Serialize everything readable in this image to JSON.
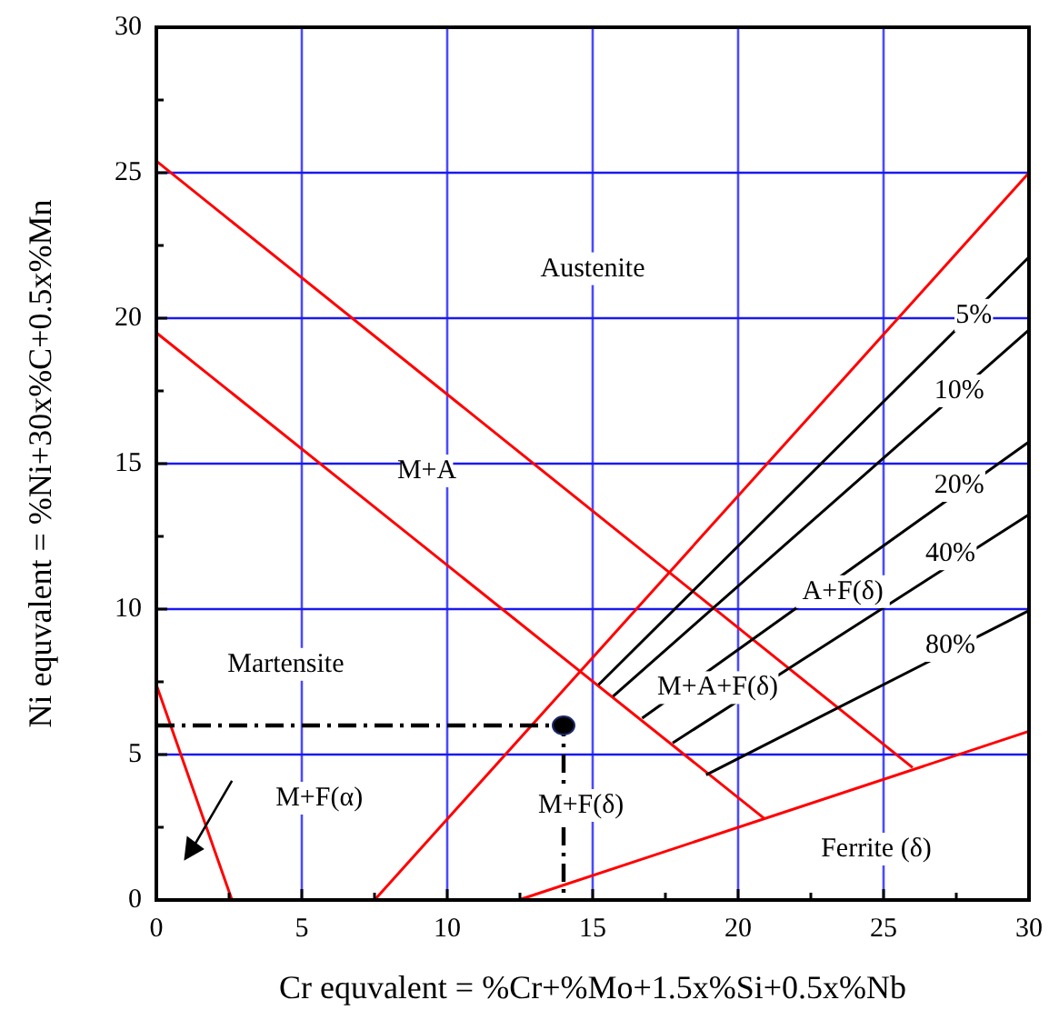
{
  "chart_data": {
    "type": "line",
    "xlabel": "Cr equvalent = %Cr+%Mo+1.5x%Si+0.5x%Nb",
    "ylabel": "Ni equvalent = %Ni+30x%C+0.5x%Mn",
    "xlim": [
      0,
      30
    ],
    "ylim": [
      0,
      30
    ],
    "xticks": [
      0,
      {
        "value": 2.5,
        "label": null
      },
      5,
      {
        "value": 7.5,
        "label": null
      },
      10,
      {
        "value": 12.5,
        "label": null
      },
      15,
      {
        "value": 17.5,
        "label": null
      },
      20,
      {
        "value": 22.5,
        "label": null
      },
      25,
      {
        "value": 27.5,
        "label": null
      },
      30
    ],
    "yticks": [
      0,
      {
        "value": 2.5,
        "label": null
      },
      5,
      {
        "value": 7.5,
        "label": null
      },
      10,
      {
        "value": 12.5,
        "label": null
      },
      15,
      {
        "value": 17.5,
        "label": null
      },
      20,
      {
        "value": 22.5,
        "label": null
      },
      25,
      {
        "value": 27.5,
        "label": null
      },
      30
    ],
    "grid": true,
    "marker": "none",
    "series": [
      {
        "color": "#ff0000",
        "x": [
          0,
          26
        ],
        "values": [
          25.4,
          4.55
        ]
      },
      {
        "color": "#ff0000",
        "x": [
          0,
          20.9
        ],
        "values": [
          19.5,
          2.8
        ]
      },
      {
        "color": "#ff0000",
        "x": [
          0,
          2.6
        ],
        "values": [
          7.4,
          0
        ]
      },
      {
        "color": "#ff0000",
        "x": [
          7.5,
          30
        ],
        "values": [
          0,
          25
        ]
      },
      {
        "color": "#ff0000",
        "x": [
          12.45,
          30
        ],
        "values": [
          0,
          5.8
        ]
      },
      {
        "color": "#000000",
        "x": [
          15.2,
          30
        ],
        "values": [
          7.4,
          22.1
        ]
      },
      {
        "color": "#000000",
        "x": [
          15.7,
          30
        ],
        "values": [
          7,
          19.6
        ]
      },
      {
        "color": "#000000",
        "x": [
          16.7,
          30
        ],
        "values": [
          6.25,
          15.75
        ]
      },
      {
        "color": "#000000",
        "x": [
          17.75,
          30
        ],
        "values": [
          5.4,
          13.25
        ]
      },
      {
        "color": "#000000",
        "x": [
          18.9,
          30
        ],
        "values": [
          4.3,
          9.95
        ]
      },
      {
        "color": "#000000",
        "x": [
          0,
          14,
          14
        ],
        "values": [
          6,
          6,
          0
        ],
        "line_style": "dashed"
      },
      {
        "type": "scatter",
        "color": "#000000",
        "marker": "circle",
        "x": [
          14
        ],
        "values": [
          6
        ]
      }
    ],
    "annotations": [
      "Austenite",
      "M+A",
      "Martensite",
      "M+F(α)",
      "M+F(δ)",
      "Ferrite (δ)",
      "M+A+F(δ)",
      "A+F(δ)",
      {
        "text": "5%",
        "x": 28.1,
        "y": 20.1
      },
      {
        "text": "10%",
        "x": 27.6,
        "y": 17.5
      },
      {
        "text": "20%",
        "x": 27.6,
        "y": 14.25
      },
      {
        "text": "40%",
        "x": 27.3,
        "y": 11.9
      },
      {
        "text": "80%",
        "x": 27.3,
        "y": 8.75
      }
    ]
  }
}
